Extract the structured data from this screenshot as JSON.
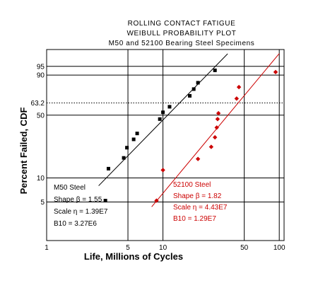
{
  "chart_data": {
    "type": "scatter",
    "title_lines": [
      "ROLLING CONTACT FATIGUE",
      "WEIBULL PROBABILITY PLOT",
      "M50 and 52100 Bearing Steel Specimens"
    ],
    "xlabel": "Life, Millions of Cycles",
    "ylabel": "Percent Failed, CDF",
    "x_scale": "log",
    "y_scale": "weibull",
    "xlim": [
      1,
      110
    ],
    "ylim": [
      1.6,
      99.3
    ],
    "x_ticks": [
      1,
      5,
      10,
      50,
      100
    ],
    "x_tick_labels": [
      "1",
      "5",
      "10",
      "50",
      "100"
    ],
    "y_ticks": [
      5,
      10,
      50,
      63.2,
      90,
      95
    ],
    "y_tick_labels": [
      "5",
      "10",
      "50",
      "63.2",
      "90",
      "95"
    ],
    "reference_line": {
      "y": 63.2,
      "style": "dotted"
    },
    "series": [
      {
        "name": "M50 Steel",
        "color": "#000000",
        "marker": "square",
        "points": [
          [
            3.2,
            5.2
          ],
          [
            3.4,
            13.0
          ],
          [
            4.6,
            17.5
          ],
          [
            4.9,
            23.0
          ],
          [
            5.6,
            28.5
          ],
          [
            6.0,
            33.0
          ],
          [
            9.4,
            46.0
          ],
          [
            10.0,
            53.0
          ],
          [
            11.4,
            59.0
          ],
          [
            17.0,
            71.0
          ],
          [
            18.4,
            78.0
          ],
          [
            20.0,
            84.0
          ],
          [
            28.0,
            93.0
          ]
        ],
        "fit_line": {
          "shape": 1.55,
          "scale_millions": 13.9,
          "x_from": 2.8,
          "x_to": 36.0
        }
      },
      {
        "name": "52100 Steel",
        "color": "#cc0000",
        "marker": "diamond",
        "points": [
          [
            8.8,
            5.2
          ],
          [
            10.0,
            12.5
          ],
          [
            20.0,
            17.0
          ],
          [
            26.0,
            23.5
          ],
          [
            28.0,
            30.0
          ],
          [
            29.0,
            38.0
          ],
          [
            29.5,
            46.0
          ],
          [
            30.0,
            52.0
          ],
          [
            43.0,
            68.0
          ],
          [
            45.0,
            80.0
          ],
          [
            93.0,
            92.0
          ]
        ],
        "fit_line": {
          "shape": 1.82,
          "scale_millions": 44.3,
          "x_from": 8.0,
          "x_to": 100.0
        }
      }
    ],
    "annotations": {
      "m50": [
        "M50 Steel",
        "Shape β = 1.55",
        "Scale η = 1.39E7",
        "B10 = 3.27E6"
      ],
      "s52100": [
        "52100 Steel",
        "Shape β = 1.82",
        "Scale η = 4.43E7",
        "B10 = 1.29E7"
      ]
    }
  }
}
